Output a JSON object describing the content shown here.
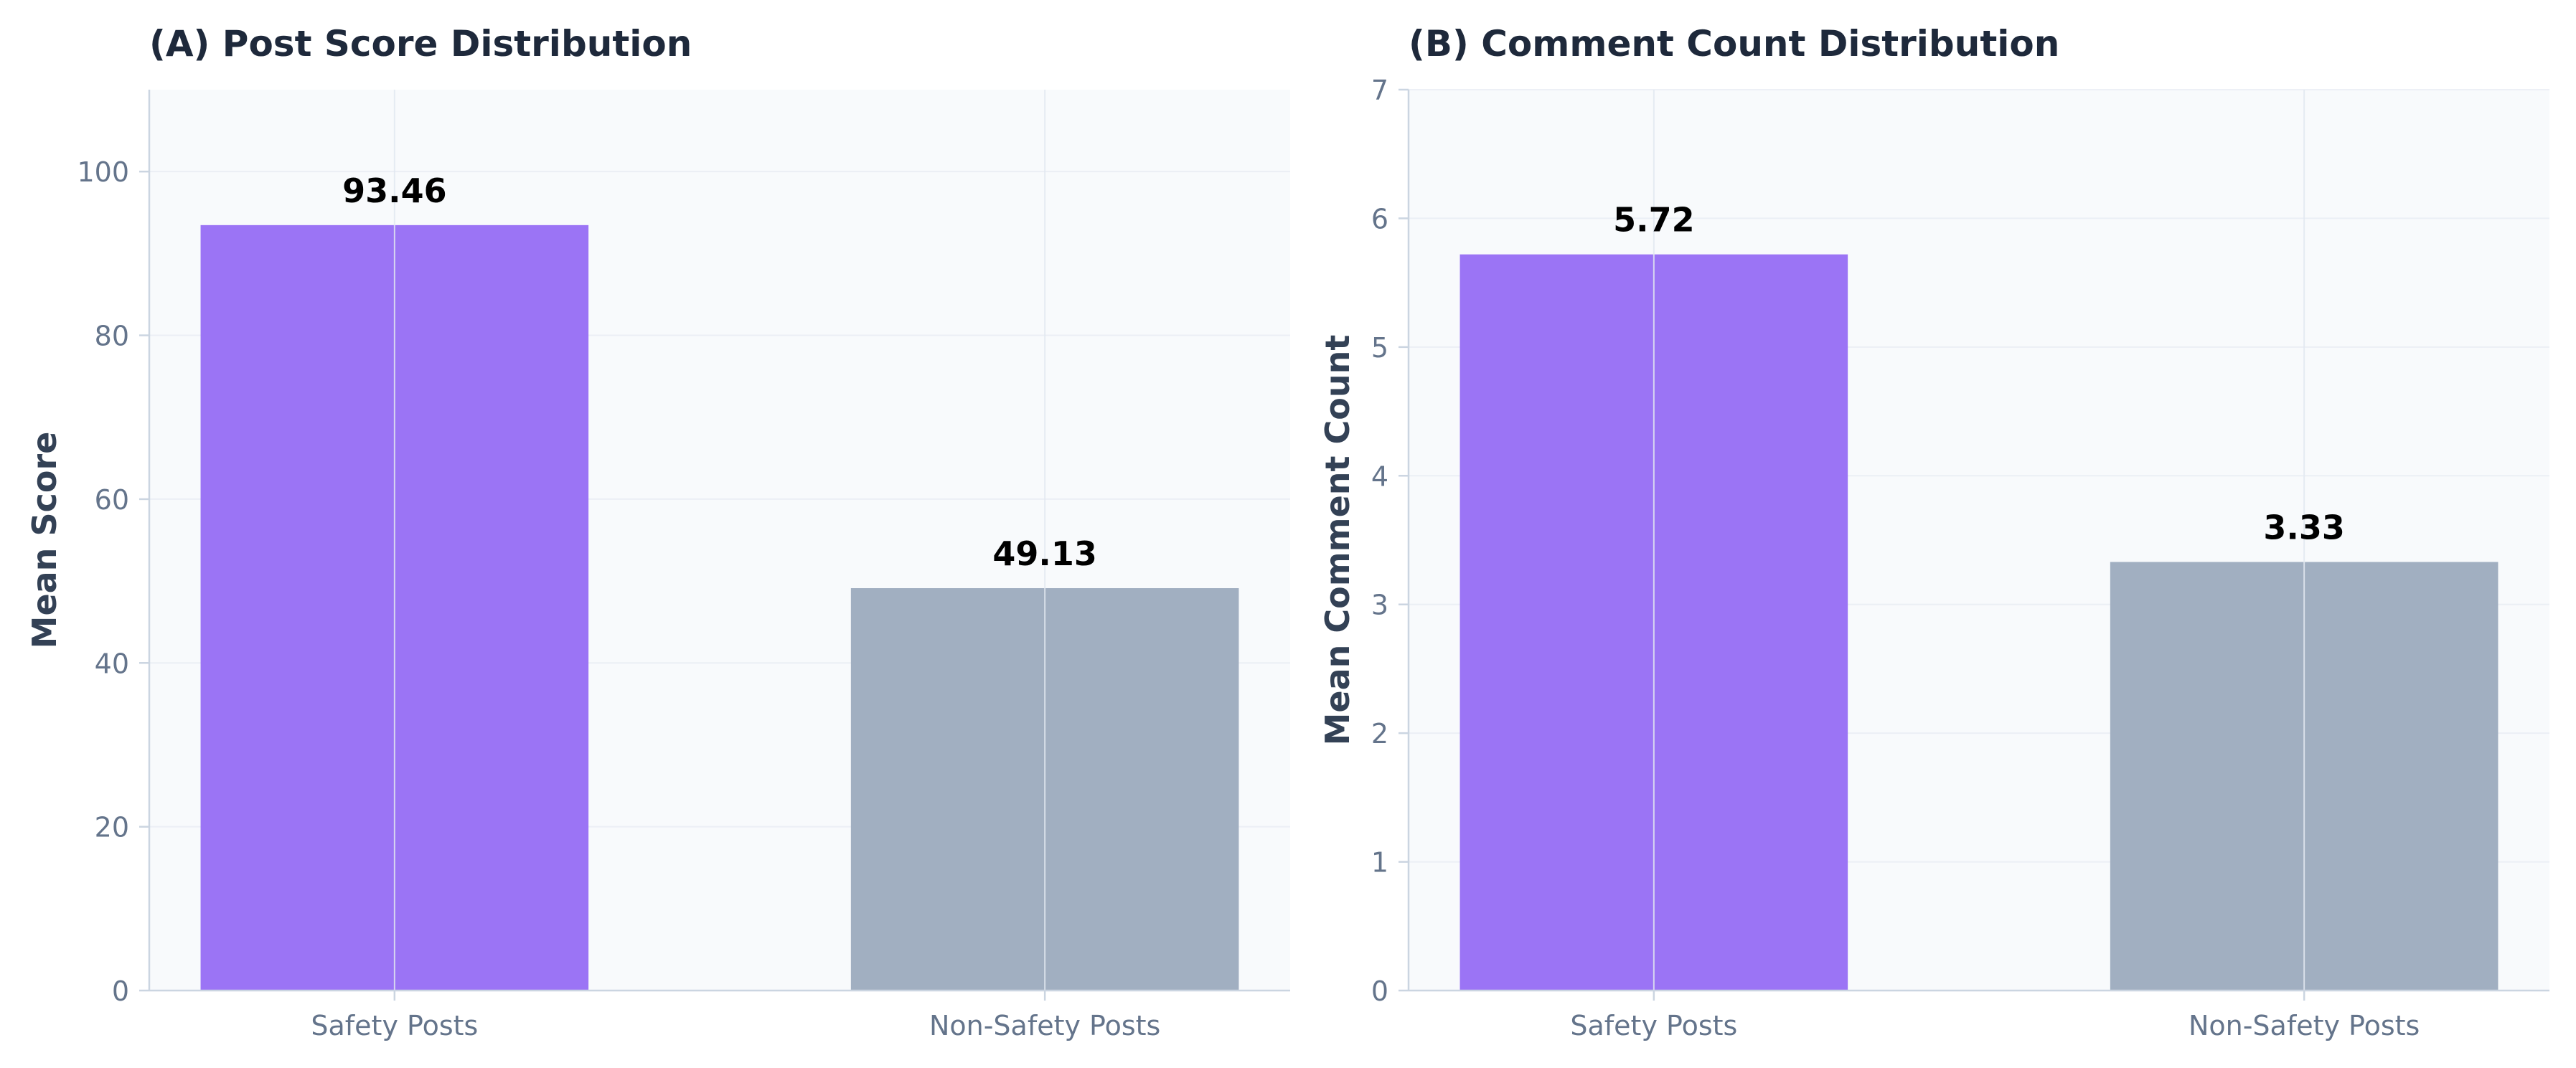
{
  "chart_data": [
    {
      "type": "bar",
      "title": "(A) Post Score Distribution",
      "xlabel": "",
      "ylabel": "Mean Score",
      "categories": [
        "Safety Posts",
        "Non-Safety Posts"
      ],
      "values": [
        93.46,
        49.13
      ],
      "value_labels": [
        "93.46",
        "49.13"
      ],
      "ylim": [
        0,
        110
      ],
      "yticks": [
        0,
        20,
        40,
        60,
        80,
        100
      ],
      "ytick_labels": [
        "0",
        "20",
        "40",
        "60",
        "80",
        "100"
      ],
      "grid": true,
      "colors": [
        "#9b74f5",
        "#a1afc1"
      ]
    },
    {
      "type": "bar",
      "title": "(B) Comment Count Distribution",
      "xlabel": "",
      "ylabel": "Mean Comment Count",
      "categories": [
        "Safety Posts",
        "Non-Safety Posts"
      ],
      "values": [
        5.72,
        3.33
      ],
      "value_labels": [
        "5.72",
        "3.33"
      ],
      "ylim": [
        0,
        7
      ],
      "yticks": [
        0,
        1,
        2,
        3,
        4,
        5,
        6,
        7
      ],
      "ytick_labels": [
        "0",
        "1",
        "2",
        "3",
        "4",
        "5",
        "6",
        "7"
      ],
      "grid": true,
      "colors": [
        "#9b74f5",
        "#a1afc1"
      ]
    }
  ],
  "style": {
    "plot_background": "#f8fafc",
    "grid_color": "#e2e8f0",
    "axis_color": "#cbd5e1"
  }
}
